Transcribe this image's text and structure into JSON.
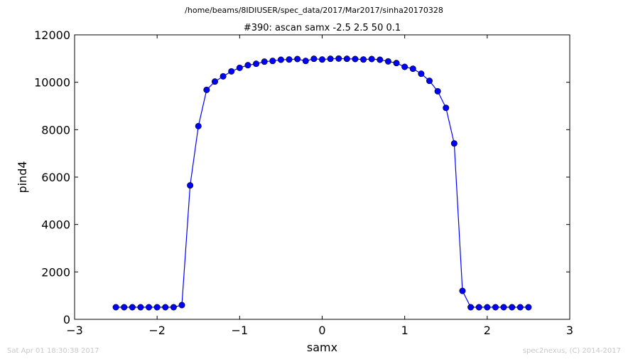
{
  "header": {
    "path": "/home/beams/8IDIUSER/spec_data/2017/Mar2017/sinha20170328"
  },
  "footer": {
    "timestamp": "Sat Apr 01 18:30:38 2017",
    "credit": "spec2nexus, (C) 2014-2017"
  },
  "colors": {
    "series": "#0000ff",
    "footer_text": "#c8c8c8"
  },
  "chart_data": {
    "type": "line",
    "title": "#390: ascan  samx -2.5 2.5  50 0.1",
    "xlabel": "samx",
    "ylabel": "pind4",
    "xlim": [
      -3,
      3
    ],
    "ylim": [
      0,
      12000
    ],
    "x_ticks": [
      -3,
      -2,
      -1,
      0,
      1,
      2,
      3
    ],
    "x_tick_labels": [
      "−3",
      "−2",
      "−1",
      "0",
      "1",
      "2",
      "3"
    ],
    "y_ticks": [
      0,
      2000,
      4000,
      6000,
      8000,
      10000,
      12000
    ],
    "y_tick_labels": [
      "0",
      "2000",
      "4000",
      "6000",
      "8000",
      "10000",
      "12000"
    ],
    "grid": false,
    "markers": "circle",
    "series": [
      {
        "x": [
          -2.5,
          -2.4,
          -2.3,
          -2.2,
          -2.1,
          -2.0,
          -1.9,
          -1.8,
          -1.7,
          -1.6,
          -1.5,
          -1.4,
          -1.3,
          -1.2,
          -1.1,
          -1.0,
          -0.9,
          -0.8,
          -0.7,
          -0.6,
          -0.5,
          -0.4,
          -0.3,
          -0.2,
          -0.1,
          0.0,
          0.1,
          0.2,
          0.3,
          0.4,
          0.5,
          0.6,
          0.7,
          0.8,
          0.9,
          1.0,
          1.1,
          1.2,
          1.3,
          1.4,
          1.5,
          1.6,
          1.7,
          1.8,
          1.9,
          2.0,
          2.1,
          2.2,
          2.3,
          2.4,
          2.5
        ],
        "y": [
          510,
          510,
          510,
          510,
          510,
          510,
          510,
          510,
          600,
          5650,
          8150,
          9680,
          10030,
          10250,
          10460,
          10610,
          10720,
          10780,
          10870,
          10900,
          10950,
          10960,
          10980,
          10900,
          10990,
          10960,
          10990,
          11000,
          10990,
          10980,
          10960,
          10980,
          10950,
          10880,
          10810,
          10650,
          10570,
          10360,
          10060,
          9620,
          8920,
          7420,
          1200,
          510,
          510,
          510,
          510,
          510,
          510,
          510,
          510
        ]
      }
    ]
  }
}
